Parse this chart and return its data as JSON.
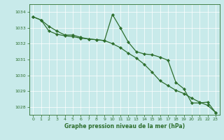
{
  "title": "Graphe pression niveau de la mer (hPa)",
  "bg_color": "#c8eaea",
  "grid_color": "#ffffff",
  "line_color": "#2d6e2d",
  "marker_color": "#2d6e2d",
  "x_ticks": [
    0,
    1,
    2,
    3,
    4,
    5,
    6,
    7,
    8,
    9,
    10,
    11,
    12,
    13,
    14,
    15,
    16,
    17,
    18,
    19,
    20,
    21,
    22,
    23
  ],
  "y_ticks": [
    1028,
    1029,
    1030,
    1031,
    1032,
    1033,
    1034
  ],
  "ylim": [
    1027.5,
    1034.5
  ],
  "xlim": [
    -0.5,
    23.5
  ],
  "line1_x": [
    0,
    1,
    2,
    3,
    4,
    5,
    6,
    7,
    8,
    9,
    10,
    11,
    12,
    13,
    14,
    15,
    16,
    17,
    18,
    19,
    20,
    21,
    22,
    23
  ],
  "line1_y": [
    1033.7,
    1033.5,
    1032.8,
    1032.6,
    1032.5,
    1032.45,
    1032.35,
    1032.3,
    1032.25,
    1032.2,
    1032.0,
    1031.75,
    1031.4,
    1031.1,
    1030.7,
    1030.2,
    1029.65,
    1029.35,
    1029.05,
    1028.85,
    1028.55,
    1028.3,
    1028.1,
    1027.65
  ],
  "line2_x": [
    0,
    1,
    2,
    3,
    4,
    5,
    6,
    7,
    8,
    9,
    10,
    11,
    12,
    13,
    14,
    15,
    16,
    17,
    18,
    19,
    20,
    21,
    22,
    23
  ],
  "line2_y": [
    1033.7,
    1033.5,
    1033.1,
    1032.8,
    1032.55,
    1032.55,
    1032.4,
    1032.3,
    1032.25,
    1032.2,
    1033.85,
    1033.0,
    1032.1,
    1031.5,
    1031.35,
    1031.3,
    1031.15,
    1030.95,
    1029.55,
    1029.15,
    1028.25,
    1028.25,
    1028.3,
    1027.65
  ],
  "title_fontsize": 5.5,
  "tick_fontsize": 4.5,
  "linewidth": 0.9,
  "markersize": 2.2
}
